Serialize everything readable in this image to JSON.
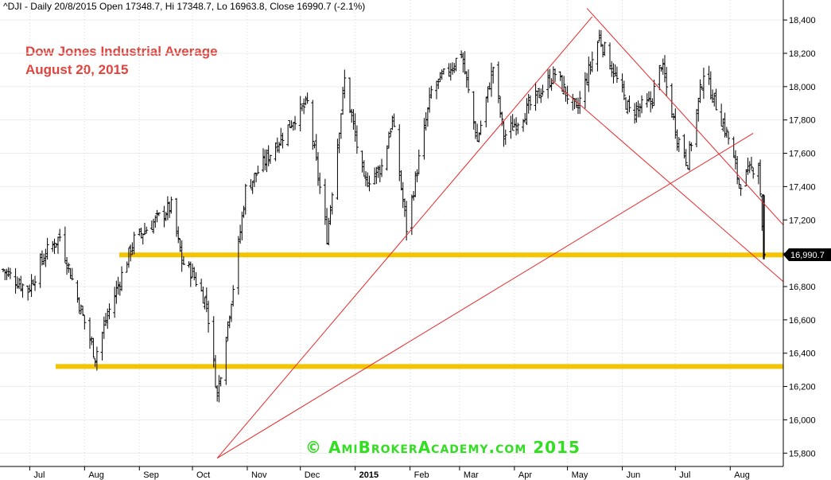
{
  "header": {
    "info_line": "^DJI - Daily 20/8/2015 Open 17348.7, Hi 17348.7, Lo 16963.8, Close 16990.7 (-2.1%)"
  },
  "chart_title": {
    "line1": "Dow Jones Industrial Average",
    "line2": "August 20, 2015"
  },
  "watermark": "© AmiBrokerAcademy.com 2015",
  "colors": {
    "support_band": "#f5c400",
    "trendline": "#e8282a",
    "price_bar": "#000000",
    "title": "#e0443e",
    "watermark": "#33dd22",
    "last_price_tag": "#000000"
  },
  "chart_data": {
    "type": "ohlc",
    "title": "Dow Jones Industrial Average",
    "subtitle": "August 20, 2015",
    "ylim": [
      15720,
      18520
    ],
    "y_ticks": [
      "15,800",
      "16,000",
      "16,200",
      "16,400",
      "16,600",
      "16,800",
      "17,000",
      "17,200",
      "17,400",
      "17,600",
      "17,800",
      "18,000",
      "18,200",
      "18,400"
    ],
    "x_tick_labels": [
      "Jul",
      "Aug",
      "Sep",
      "Oct",
      "Nov",
      "Dec",
      "2015",
      "Feb",
      "Mar",
      "Apr",
      "May",
      "Jun",
      "Jul",
      "Aug"
    ],
    "last_price_label": "16,990.7",
    "last_close": {
      "date": "2015-08-20",
      "open": 17348.7,
      "high": 17348.7,
      "low": 16963.8,
      "close": 16990.7,
      "change_pct": -2.1
    },
    "series_path": [
      [
        "2014-06-16",
        16900
      ],
      [
        "2014-06-30",
        16780
      ],
      [
        "2014-07-10",
        17000
      ],
      [
        "2014-07-18",
        17100
      ],
      [
        "2014-07-31",
        16620
      ],
      [
        "2014-08-07",
        16380
      ],
      [
        "2014-08-15",
        16660
      ],
      [
        "2014-08-29",
        17080
      ],
      [
        "2014-09-19",
        17280
      ],
      [
        "2014-09-25",
        16950
      ],
      [
        "2014-10-01",
        16880
      ],
      [
        "2014-10-09",
        16700
      ],
      [
        "2014-10-15",
        16150
      ],
      [
        "2014-10-24",
        16800
      ],
      [
        "2014-10-31",
        17380
      ],
      [
        "2014-11-14",
        17600
      ],
      [
        "2014-11-28",
        17820
      ],
      [
        "2014-12-05",
        17900
      ],
      [
        "2014-12-16",
        17100
      ],
      [
        "2014-12-26",
        18040
      ],
      [
        "2015-01-06",
        17420
      ],
      [
        "2015-01-16",
        17520
      ],
      [
        "2015-01-22",
        17800
      ],
      [
        "2015-01-30",
        17150
      ],
      [
        "2015-02-13",
        17970
      ],
      [
        "2015-03-02",
        18200
      ],
      [
        "2015-03-11",
        17670
      ],
      [
        "2015-03-20",
        18120
      ],
      [
        "2015-03-26",
        17700
      ],
      [
        "2015-04-08",
        17860
      ],
      [
        "2015-04-24",
        18080
      ],
      [
        "2015-05-06",
        17850
      ],
      [
        "2015-05-19",
        18300
      ],
      [
        "2015-06-05",
        17850
      ],
      [
        "2015-06-17",
        17900
      ],
      [
        "2015-06-23",
        18140
      ],
      [
        "2015-07-02",
        17700
      ],
      [
        "2015-07-08",
        17550
      ],
      [
        "2015-07-17",
        18090
      ],
      [
        "2015-07-31",
        17690
      ],
      [
        "2015-08-06",
        17420
      ],
      [
        "2015-08-17",
        17550
      ],
      [
        "2015-08-20",
        16990
      ]
    ],
    "horizontal_lines": [
      {
        "name": "support-16990",
        "value": 16990,
        "color": "#f5c400"
      },
      {
        "name": "support-16320",
        "value": 16320,
        "color": "#f5c400"
      }
    ],
    "trendlines": [
      {
        "from": [
          "2014-10-15",
          15770
        ],
        "to": [
          "2015-05-15",
          18420
        ]
      },
      {
        "from": [
          "2014-10-15",
          15770
        ],
        "to": [
          "2015-08-14",
          17720
        ]
      },
      {
        "from": [
          "2015-05-12",
          18470
        ],
        "to": [
          "2015-08-31",
          17170
        ]
      },
      {
        "from": [
          "2015-04-22",
          18040
        ],
        "to": [
          "2015-08-31",
          16830
        ]
      }
    ]
  }
}
